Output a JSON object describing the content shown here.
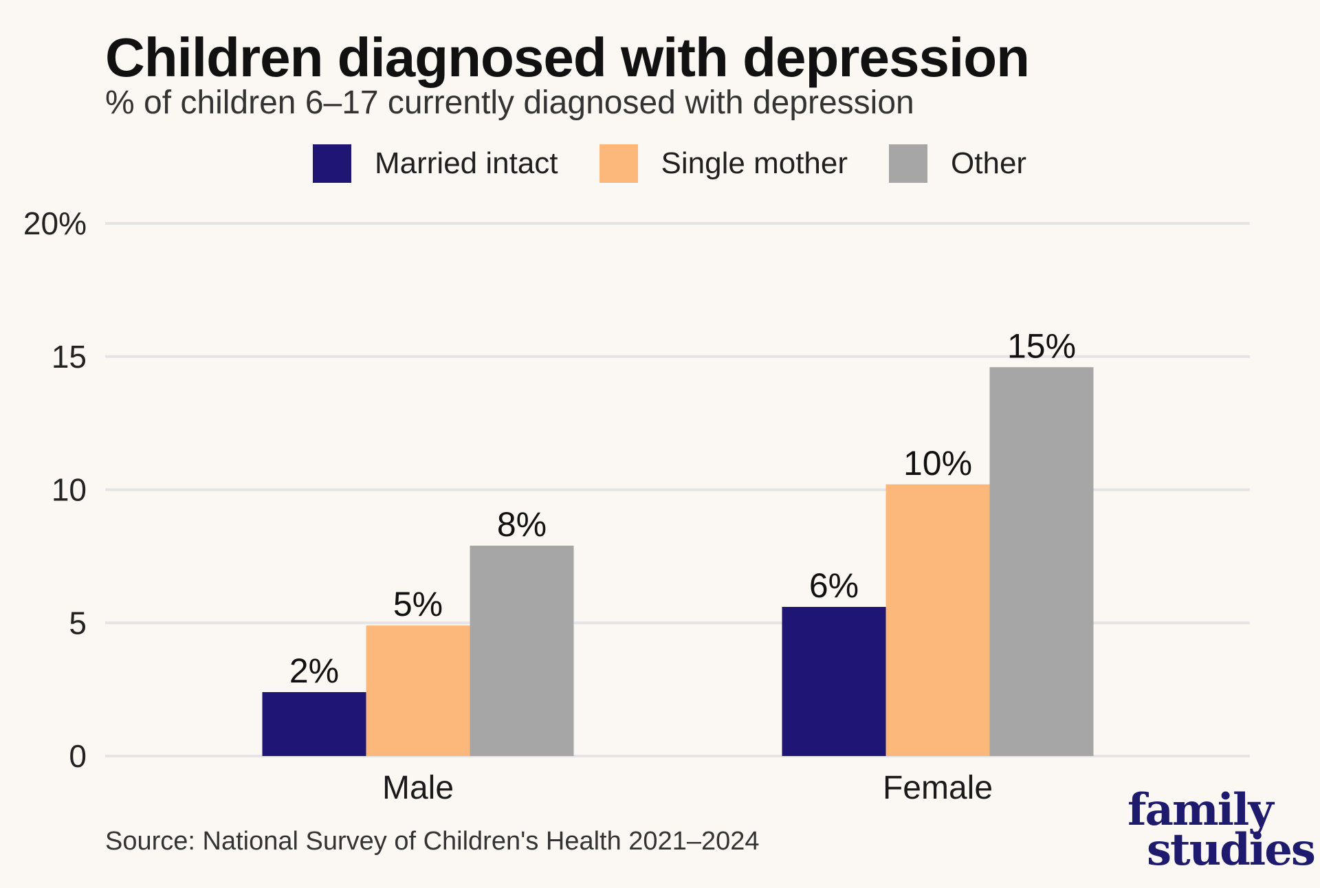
{
  "header": {
    "title": "Children diagnosed with depression",
    "subtitle": "% of children 6–17 currently diagnosed with depression"
  },
  "legend": [
    {
      "label": "Married intact",
      "color": "#1e1574"
    },
    {
      "label": "Single mother",
      "color": "#fcb77b"
    },
    {
      "label": "Other",
      "color": "#a6a6a6"
    }
  ],
  "source": "Source: National Survey of Children's Health 2021–2024",
  "logo": {
    "line1": "family",
    "line2": "studies"
  },
  "chart_data": {
    "type": "bar",
    "title": "Children diagnosed with depression",
    "subtitle": "% of children 6–17 currently diagnosed with depression",
    "categories": [
      "Male",
      "Female"
    ],
    "series": [
      {
        "name": "Married intact",
        "values": [
          2.4,
          5.6
        ],
        "labels": [
          "2%",
          "6%"
        ],
        "color": "#1e1574"
      },
      {
        "name": "Single mother",
        "values": [
          4.9,
          10.2
        ],
        "labels": [
          "5%",
          "10%"
        ],
        "color": "#fcb77b"
      },
      {
        "name": "Other",
        "values": [
          7.9,
          14.6
        ],
        "labels": [
          "8%",
          "15%"
        ],
        "color": "#a6a6a6"
      }
    ],
    "ylim": [
      0,
      20
    ],
    "yticks": [
      0,
      5,
      10,
      15,
      20
    ],
    "ytick_labels": [
      "0",
      "5",
      "10",
      "15",
      "20%"
    ],
    "grid": true,
    "legend_position": "top"
  }
}
